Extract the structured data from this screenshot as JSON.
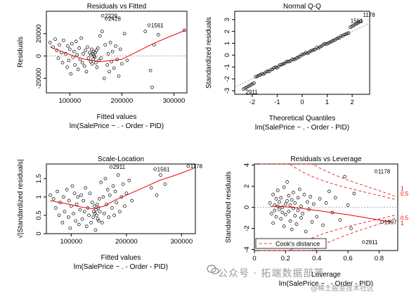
{
  "watermark": {
    "main": "公众号 · 拓端数据部落",
    "sub": "@稀土掘金技术社区"
  },
  "chart_data": [
    {
      "type": "scatter",
      "title": "Residuals vs Fitted",
      "xlabel": "Fitted values",
      "sublabel": "lm(SalePrice ~ . - Order - PID)",
      "ylabel": "Residuals",
      "xlim": [
        55000,
        325000
      ],
      "ylim": [
        -33000,
        40000
      ],
      "xticks": [
        100000,
        200000,
        300000
      ],
      "yticks": [
        -20000,
        0,
        20000
      ],
      "reference_line": 0,
      "annotations": [
        {
          "text": "2229",
          "x": 163000,
          "y": 36000
        },
        {
          "text": "2428",
          "x": 170000,
          "y": 33500
        },
        {
          "text": "1561",
          "x": 252000,
          "y": 27500
        }
      ],
      "points": [
        [
          62000,
          12000
        ],
        [
          68000,
          8000
        ],
        [
          72000,
          15000
        ],
        [
          75000,
          5000
        ],
        [
          78000,
          -2000
        ],
        [
          80000,
          10000
        ],
        [
          84000,
          3000
        ],
        [
          86000,
          -6000
        ],
        [
          88000,
          14000
        ],
        [
          92000,
          2000
        ],
        [
          95000,
          -10000
        ],
        [
          96000,
          9000
        ],
        [
          98000,
          -4000
        ],
        [
          100000,
          6000
        ],
        [
          102000,
          -16000
        ],
        [
          104000,
          11000
        ],
        [
          106000,
          -1000
        ],
        [
          108000,
          4000
        ],
        [
          110000,
          -8000
        ],
        [
          112000,
          13000
        ],
        [
          114000,
          1000
        ],
        [
          116000,
          -12000
        ],
        [
          118000,
          7000
        ],
        [
          120000,
          -3000
        ],
        [
          122000,
          16000
        ],
        [
          124000,
          -6000
        ],
        [
          126000,
          2000
        ],
        [
          128000,
          -9000
        ],
        [
          130000,
          5000
        ],
        [
          132000,
          -14000
        ],
        [
          134000,
          8000
        ],
        [
          136000,
          -2000
        ],
        [
          138000,
          3000
        ],
        [
          140000,
          -5000
        ],
        [
          141000,
          1000
        ],
        [
          142000,
          6000
        ],
        [
          143000,
          -7000
        ],
        [
          144000,
          2000
        ],
        [
          145000,
          -3000
        ],
        [
          146000,
          4000
        ],
        [
          147000,
          0
        ],
        [
          148000,
          -1000
        ],
        [
          149000,
          3000
        ],
        [
          150000,
          -6000
        ],
        [
          151000,
          5000
        ],
        [
          152000,
          -10000
        ],
        [
          154000,
          7000
        ],
        [
          156000,
          -4000
        ],
        [
          158000,
          18000
        ],
        [
          160000,
          -2000
        ],
        [
          162000,
          22000
        ],
        [
          163000,
          36000
        ],
        [
          166000,
          -20000
        ],
        [
          170000,
          33500
        ],
        [
          168000,
          10000
        ],
        [
          172000,
          -8000
        ],
        [
          174000,
          2000
        ],
        [
          176000,
          -14000
        ],
        [
          178000,
          12000
        ],
        [
          180000,
          -5000
        ],
        [
          182000,
          4000
        ],
        [
          185000,
          -11000
        ],
        [
          188000,
          9000
        ],
        [
          191000,
          -3000
        ],
        [
          194000,
          -18000
        ],
        [
          197000,
          6000
        ],
        [
          200000,
          -7000
        ],
        [
          205000,
          20000
        ],
        [
          210000,
          -4000
        ],
        [
          245000,
          22000
        ],
        [
          252000,
          27500
        ],
        [
          255000,
          -13000
        ],
        [
          258000,
          -28000
        ],
        [
          262000,
          10000
        ],
        [
          270000,
          19000
        ],
        [
          320000,
          23000
        ]
      ],
      "loess": [
        [
          62000,
          8000
        ],
        [
          90000,
          3000
        ],
        [
          120000,
          -2000
        ],
        [
          140000,
          -4000
        ],
        [
          160000,
          -5000
        ],
        [
          180000,
          -4000
        ],
        [
          200000,
          -3000
        ],
        [
          230000,
          4000
        ],
        [
          260000,
          11000
        ],
        [
          290000,
          17000
        ],
        [
          322000,
          23000
        ]
      ]
    },
    {
      "type": "scatter",
      "title": "Normal Q-Q",
      "xlabel": "Theoretical Quantiles",
      "sublabel": "lm(SalePrice ~ . - Order - PID)",
      "ylabel": "Standardized residuals",
      "xlim": [
        -2.7,
        2.7
      ],
      "ylim": [
        -3.3,
        3.7
      ],
      "xticks": [
        -2,
        -1,
        0,
        1,
        2
      ],
      "yticks": [
        -3,
        -2,
        -1,
        0,
        1,
        2,
        3
      ],
      "reference_line": "y=x",
      "annotations": [
        {
          "text": "1178",
          "x": 2.35,
          "y": 3.4
        },
        {
          "text": "1561",
          "x": 1.85,
          "y": 2.9
        },
        {
          "text": "2911",
          "x": -2.35,
          "y": -3.1
        }
      ],
      "points": []
    },
    {
      "type": "scatter",
      "title": "Scale-Location",
      "xlabel": "Fitted values",
      "sublabel": "lm(SalePrice ~ . - Order - PID)",
      "ylabel": "√|Standardized residuals|",
      "xlim": [
        55000,
        325000
      ],
      "ylim": [
        0,
        1.9
      ],
      "xticks": [
        100000,
        200000,
        300000
      ],
      "yticks": [
        0.0,
        0.5,
        1.0,
        1.5
      ],
      "annotations": [
        {
          "text": "2911",
          "x": 172000,
          "y": 1.82
        },
        {
          "text": "1561",
          "x": 252000,
          "y": 1.76
        },
        {
          "text": "1178",
          "x": 312000,
          "y": 1.84
        }
      ],
      "points": [
        [
          62000,
          1.05
        ],
        [
          68000,
          0.95
        ],
        [
          72000,
          0.7
        ],
        [
          75000,
          1.15
        ],
        [
          78000,
          0.5
        ],
        [
          80000,
          0.85
        ],
        [
          84000,
          0.3
        ],
        [
          86000,
          1.0
        ],
        [
          88000,
          0.6
        ],
        [
          92000,
          1.2
        ],
        [
          95000,
          0.45
        ],
        [
          96000,
          0.9
        ],
        [
          98000,
          0.15
        ],
        [
          100000,
          0.75
        ],
        [
          102000,
          1.3
        ],
        [
          104000,
          0.55
        ],
        [
          106000,
          1.1
        ],
        [
          108000,
          0.35
        ],
        [
          110000,
          0.8
        ],
        [
          112000,
          1.0
        ],
        [
          114000,
          0.25
        ],
        [
          116000,
          0.65
        ],
        [
          118000,
          1.05
        ],
        [
          120000,
          0.4
        ],
        [
          122000,
          0.9
        ],
        [
          124000,
          0.6
        ],
        [
          126000,
          1.25
        ],
        [
          128000,
          0.2
        ],
        [
          130000,
          0.7
        ],
        [
          132000,
          0.5
        ],
        [
          134000,
          1.1
        ],
        [
          136000,
          0.3
        ],
        [
          138000,
          0.85
        ],
        [
          140000,
          0.45
        ],
        [
          141000,
          0.6
        ],
        [
          142000,
          0.75
        ],
        [
          143000,
          0.55
        ],
        [
          144000,
          0.1
        ],
        [
          145000,
          0.65
        ],
        [
          146000,
          0.5
        ],
        [
          147000,
          0.8
        ],
        [
          148000,
          0.4
        ],
        [
          149000,
          0.7
        ],
        [
          150000,
          0.35
        ],
        [
          151000,
          0.95
        ],
        [
          152000,
          0.6
        ],
        [
          154000,
          1.4
        ],
        [
          156000,
          0.3
        ],
        [
          158000,
          1.0
        ],
        [
          160000,
          0.55
        ],
        [
          162000,
          1.5
        ],
        [
          164000,
          0.8
        ],
        [
          166000,
          1.2
        ],
        [
          168000,
          0.45
        ],
        [
          170000,
          1.05
        ],
        [
          172000,
          1.82
        ],
        [
          174000,
          0.7
        ],
        [
          176000,
          1.3
        ],
        [
          178000,
          0.5
        ],
        [
          180000,
          1.15
        ],
        [
          182000,
          0.85
        ],
        [
          185000,
          1.6
        ],
        [
          188000,
          0.6
        ],
        [
          191000,
          1.0
        ],
        [
          194000,
          1.35
        ],
        [
          197000,
          0.75
        ],
        [
          200000,
          1.1
        ],
        [
          205000,
          1.45
        ],
        [
          210000,
          0.9
        ],
        [
          245000,
          1.25
        ],
        [
          252000,
          1.76
        ],
        [
          255000,
          1.05
        ],
        [
          262000,
          1.6
        ],
        [
          270000,
          1.35
        ],
        [
          312000,
          1.84
        ]
      ],
      "loess": [
        [
          62000,
          0.9
        ],
        [
          90000,
          0.82
        ],
        [
          120000,
          0.72
        ],
        [
          140000,
          0.68
        ],
        [
          160000,
          0.75
        ],
        [
          180000,
          0.92
        ],
        [
          200000,
          1.05
        ],
        [
          230000,
          1.25
        ],
        [
          260000,
          1.45
        ],
        [
          290000,
          1.6
        ],
        [
          322000,
          1.78
        ]
      ]
    },
    {
      "type": "scatter",
      "title": "Residuals vs Leverage",
      "xlabel": "Leverage",
      "sublabel": "lm(SalePrice ~ . - Order - PID)",
      "ylabel": "Standardized residuals",
      "xlim": [
        0,
        0.92
      ],
      "ylim": [
        -4.1,
        4.1
      ],
      "xticks": [
        0.0,
        0.2,
        0.4,
        0.6,
        0.8
      ],
      "yticks": [
        -4,
        -2,
        0,
        2,
        4
      ],
      "reference_line": 0,
      "legend": "Cook's distance",
      "legend_position": "bottom-left",
      "contour_labels": [
        {
          "text": "1",
          "y": 1.6
        },
        {
          "text": "0.5",
          "y": 1.1
        },
        {
          "text": "0.5",
          "y": -1.2
        },
        {
          "text": "1",
          "y": -1.7
        }
      ],
      "annotations": [
        {
          "text": "1178",
          "x": 0.78,
          "y": 3.4
        },
        {
          "text": "1997",
          "x": 0.82,
          "y": -1.4
        },
        {
          "text": "2911",
          "x": 0.7,
          "y": -3.3
        }
      ],
      "points": [
        [
          0.1,
          0.4
        ],
        [
          0.11,
          -0.6
        ],
        [
          0.12,
          1.2
        ],
        [
          0.12,
          -1.5
        ],
        [
          0.13,
          0.2
        ],
        [
          0.13,
          -0.3
        ],
        [
          0.14,
          0.8
        ],
        [
          0.14,
          -0.9
        ],
        [
          0.15,
          0.1
        ],
        [
          0.15,
          1.6
        ],
        [
          0.16,
          -0.2
        ],
        [
          0.16,
          0.5
        ],
        [
          0.17,
          -1.1
        ],
        [
          0.17,
          0.9
        ],
        [
          0.18,
          0.0
        ],
        [
          0.18,
          -0.5
        ],
        [
          0.19,
          1.9
        ],
        [
          0.19,
          -1.8
        ],
        [
          0.2,
          0.3
        ],
        [
          0.2,
          -0.7
        ],
        [
          0.21,
          2.4
        ],
        [
          0.21,
          0.6
        ],
        [
          0.22,
          -0.4
        ],
        [
          0.22,
          1.1
        ],
        [
          0.23,
          -1.3
        ],
        [
          0.23,
          0.2
        ],
        [
          0.24,
          -2.1
        ],
        [
          0.24,
          0.7
        ],
        [
          0.25,
          -0.1
        ],
        [
          0.25,
          1.4
        ],
        [
          0.26,
          -0.8
        ],
        [
          0.26,
          0.4
        ],
        [
          0.27,
          -1.6
        ],
        [
          0.28,
          0.9
        ],
        [
          0.28,
          -0.3
        ],
        [
          0.29,
          1.7
        ],
        [
          0.3,
          -1.0
        ],
        [
          0.3,
          0.1
        ],
        [
          0.31,
          -0.6
        ],
        [
          0.32,
          1.2
        ],
        [
          0.33,
          -2.3
        ],
        [
          0.34,
          0.5
        ],
        [
          0.35,
          -0.2
        ],
        [
          0.36,
          1.0
        ],
        [
          0.37,
          -1.4
        ],
        [
          0.38,
          0.3
        ],
        [
          0.4,
          -0.9
        ],
        [
          0.42,
          0.8
        ],
        [
          0.44,
          -1.7
        ],
        [
          0.46,
          0.4
        ],
        [
          0.48,
          1.5
        ],
        [
          0.5,
          -0.5
        ],
        [
          0.52,
          0.9
        ],
        [
          0.55,
          -1.2
        ],
        [
          0.58,
          2.9
        ],
        [
          0.6,
          0.2
        ],
        [
          0.62,
          -2.0
        ],
        [
          0.64,
          1.3
        ],
        [
          0.7,
          -3.3
        ],
        [
          0.78,
          3.4
        ],
        [
          0.82,
          -1.4
        ]
      ],
      "loess": [
        [
          0.1,
          0.1
        ],
        [
          0.2,
          0.05
        ],
        [
          0.3,
          -0.1
        ],
        [
          0.4,
          -0.3
        ],
        [
          0.5,
          -0.5
        ],
        [
          0.6,
          -0.7
        ],
        [
          0.7,
          -0.95
        ],
        [
          0.8,
          -1.2
        ],
        [
          0.88,
          -1.4
        ]
      ]
    }
  ]
}
